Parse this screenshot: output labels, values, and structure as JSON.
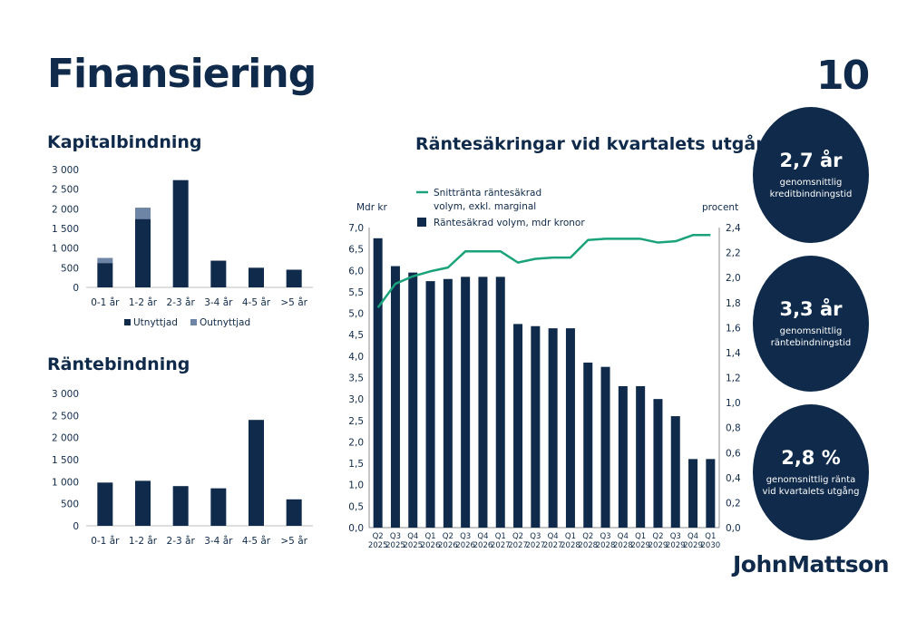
{
  "page": {
    "title": "Finansiering",
    "page_number": "10"
  },
  "brand": {
    "logo_text": "JohnMattson",
    "navy": "#0f2a4a",
    "slate": "#6f85a6",
    "green": "#1aa37a"
  },
  "kpis": [
    {
      "value": "2,7 år",
      "label": "genomsnittlig kreditbindningstid"
    },
    {
      "value": "3,3 år",
      "label": "genomsnittlig räntebindningstid"
    },
    {
      "value": "2,8 %",
      "label": "genomsnittlig ränta vid kvartalets utgång"
    }
  ],
  "chart_data": [
    {
      "type": "bar",
      "stacked": true,
      "title": "Kapitalbindning",
      "categories": [
        "0-1 år",
        "1-2 år",
        "2-3 år",
        "3-4 år",
        "4-5 år",
        ">5 år"
      ],
      "series": [
        {
          "name": "Utnyttjad",
          "values": [
            620,
            1740,
            2730,
            680,
            500,
            450
          ]
        },
        {
          "name": "Outnyttjad",
          "values": [
            130,
            290,
            0,
            0,
            0,
            0
          ]
        }
      ],
      "y_ticks": [
        "0",
        "500",
        "1 000",
        "1 500",
        "2 000",
        "2 500",
        "3 000"
      ],
      "ylim": [
        0,
        3000
      ],
      "legend_position": "bottom"
    },
    {
      "type": "bar",
      "title": "Räntebindning",
      "categories": [
        "0-1 år",
        "1-2 år",
        "2-3 år",
        "3-4 år",
        "4-5 år",
        ">5 år"
      ],
      "values": [
        980,
        1020,
        900,
        850,
        2400,
        600
      ],
      "y_ticks": [
        "0",
        "500",
        "1 000",
        "1 500",
        "2 000",
        "2 500",
        "3 000"
      ],
      "ylim": [
        0,
        3000
      ]
    },
    {
      "type": "bar+line",
      "title": "Räntesäkringar vid kvartalets utgång",
      "ylabel_left": "Mdr kr",
      "ylabel_right": "procent",
      "categories": [
        [
          "Q2",
          "2025"
        ],
        [
          "Q3",
          "2025"
        ],
        [
          "Q4",
          "2025"
        ],
        [
          "Q1",
          "2026"
        ],
        [
          "Q2",
          "2026"
        ],
        [
          "Q3",
          "2026"
        ],
        [
          "Q4",
          "2026"
        ],
        [
          "Q1",
          "2027"
        ],
        [
          "Q2",
          "2027"
        ],
        [
          "Q3",
          "2027"
        ],
        [
          "Q4",
          "2027"
        ],
        [
          "Q1",
          "2028"
        ],
        [
          "Q2",
          "2028"
        ],
        [
          "Q3",
          "2028"
        ],
        [
          "Q4",
          "2028"
        ],
        [
          "Q1",
          "2029"
        ],
        [
          "Q2",
          "2029"
        ],
        [
          "Q3",
          "2029"
        ],
        [
          "Q4",
          "2029"
        ],
        [
          "Q1",
          "2030"
        ]
      ],
      "bar_series": {
        "name": "Räntesäkrad volym, mdr kronor",
        "values": [
          6.75,
          6.1,
          5.95,
          5.75,
          5.8,
          5.85,
          5.85,
          5.85,
          4.75,
          4.7,
          4.65,
          4.65,
          3.85,
          3.75,
          3.3,
          3.3,
          3.0,
          2.6,
          1.6,
          1.6
        ]
      },
      "line_series": {
        "name": "Snittränta räntesäkrad volym, exkl. marginal",
        "values": [
          1.76,
          1.95,
          2.01,
          2.05,
          2.08,
          2.21,
          2.21,
          2.21,
          2.12,
          2.15,
          2.16,
          2.16,
          2.3,
          2.31,
          2.31,
          2.31,
          2.28,
          2.29,
          2.34,
          2.34
        ]
      },
      "y_left_ticks": [
        "0,0",
        "0,5",
        "1,0",
        "1,5",
        "2,0",
        "2,5",
        "3,0",
        "3,5",
        "4,0",
        "4,5",
        "5,0",
        "5,5",
        "6,0",
        "6,5",
        "7,0"
      ],
      "y_right_ticks": [
        "0,0",
        "0,2",
        "0,4",
        "0,6",
        "0,8",
        "1,0",
        "1,2",
        "1,4",
        "1,6",
        "1,8",
        "2,0",
        "2,2",
        "2,4"
      ],
      "ylim_left": [
        0,
        7
      ],
      "ylim_right": [
        0,
        2.4
      ],
      "legend_position": "top"
    }
  ]
}
